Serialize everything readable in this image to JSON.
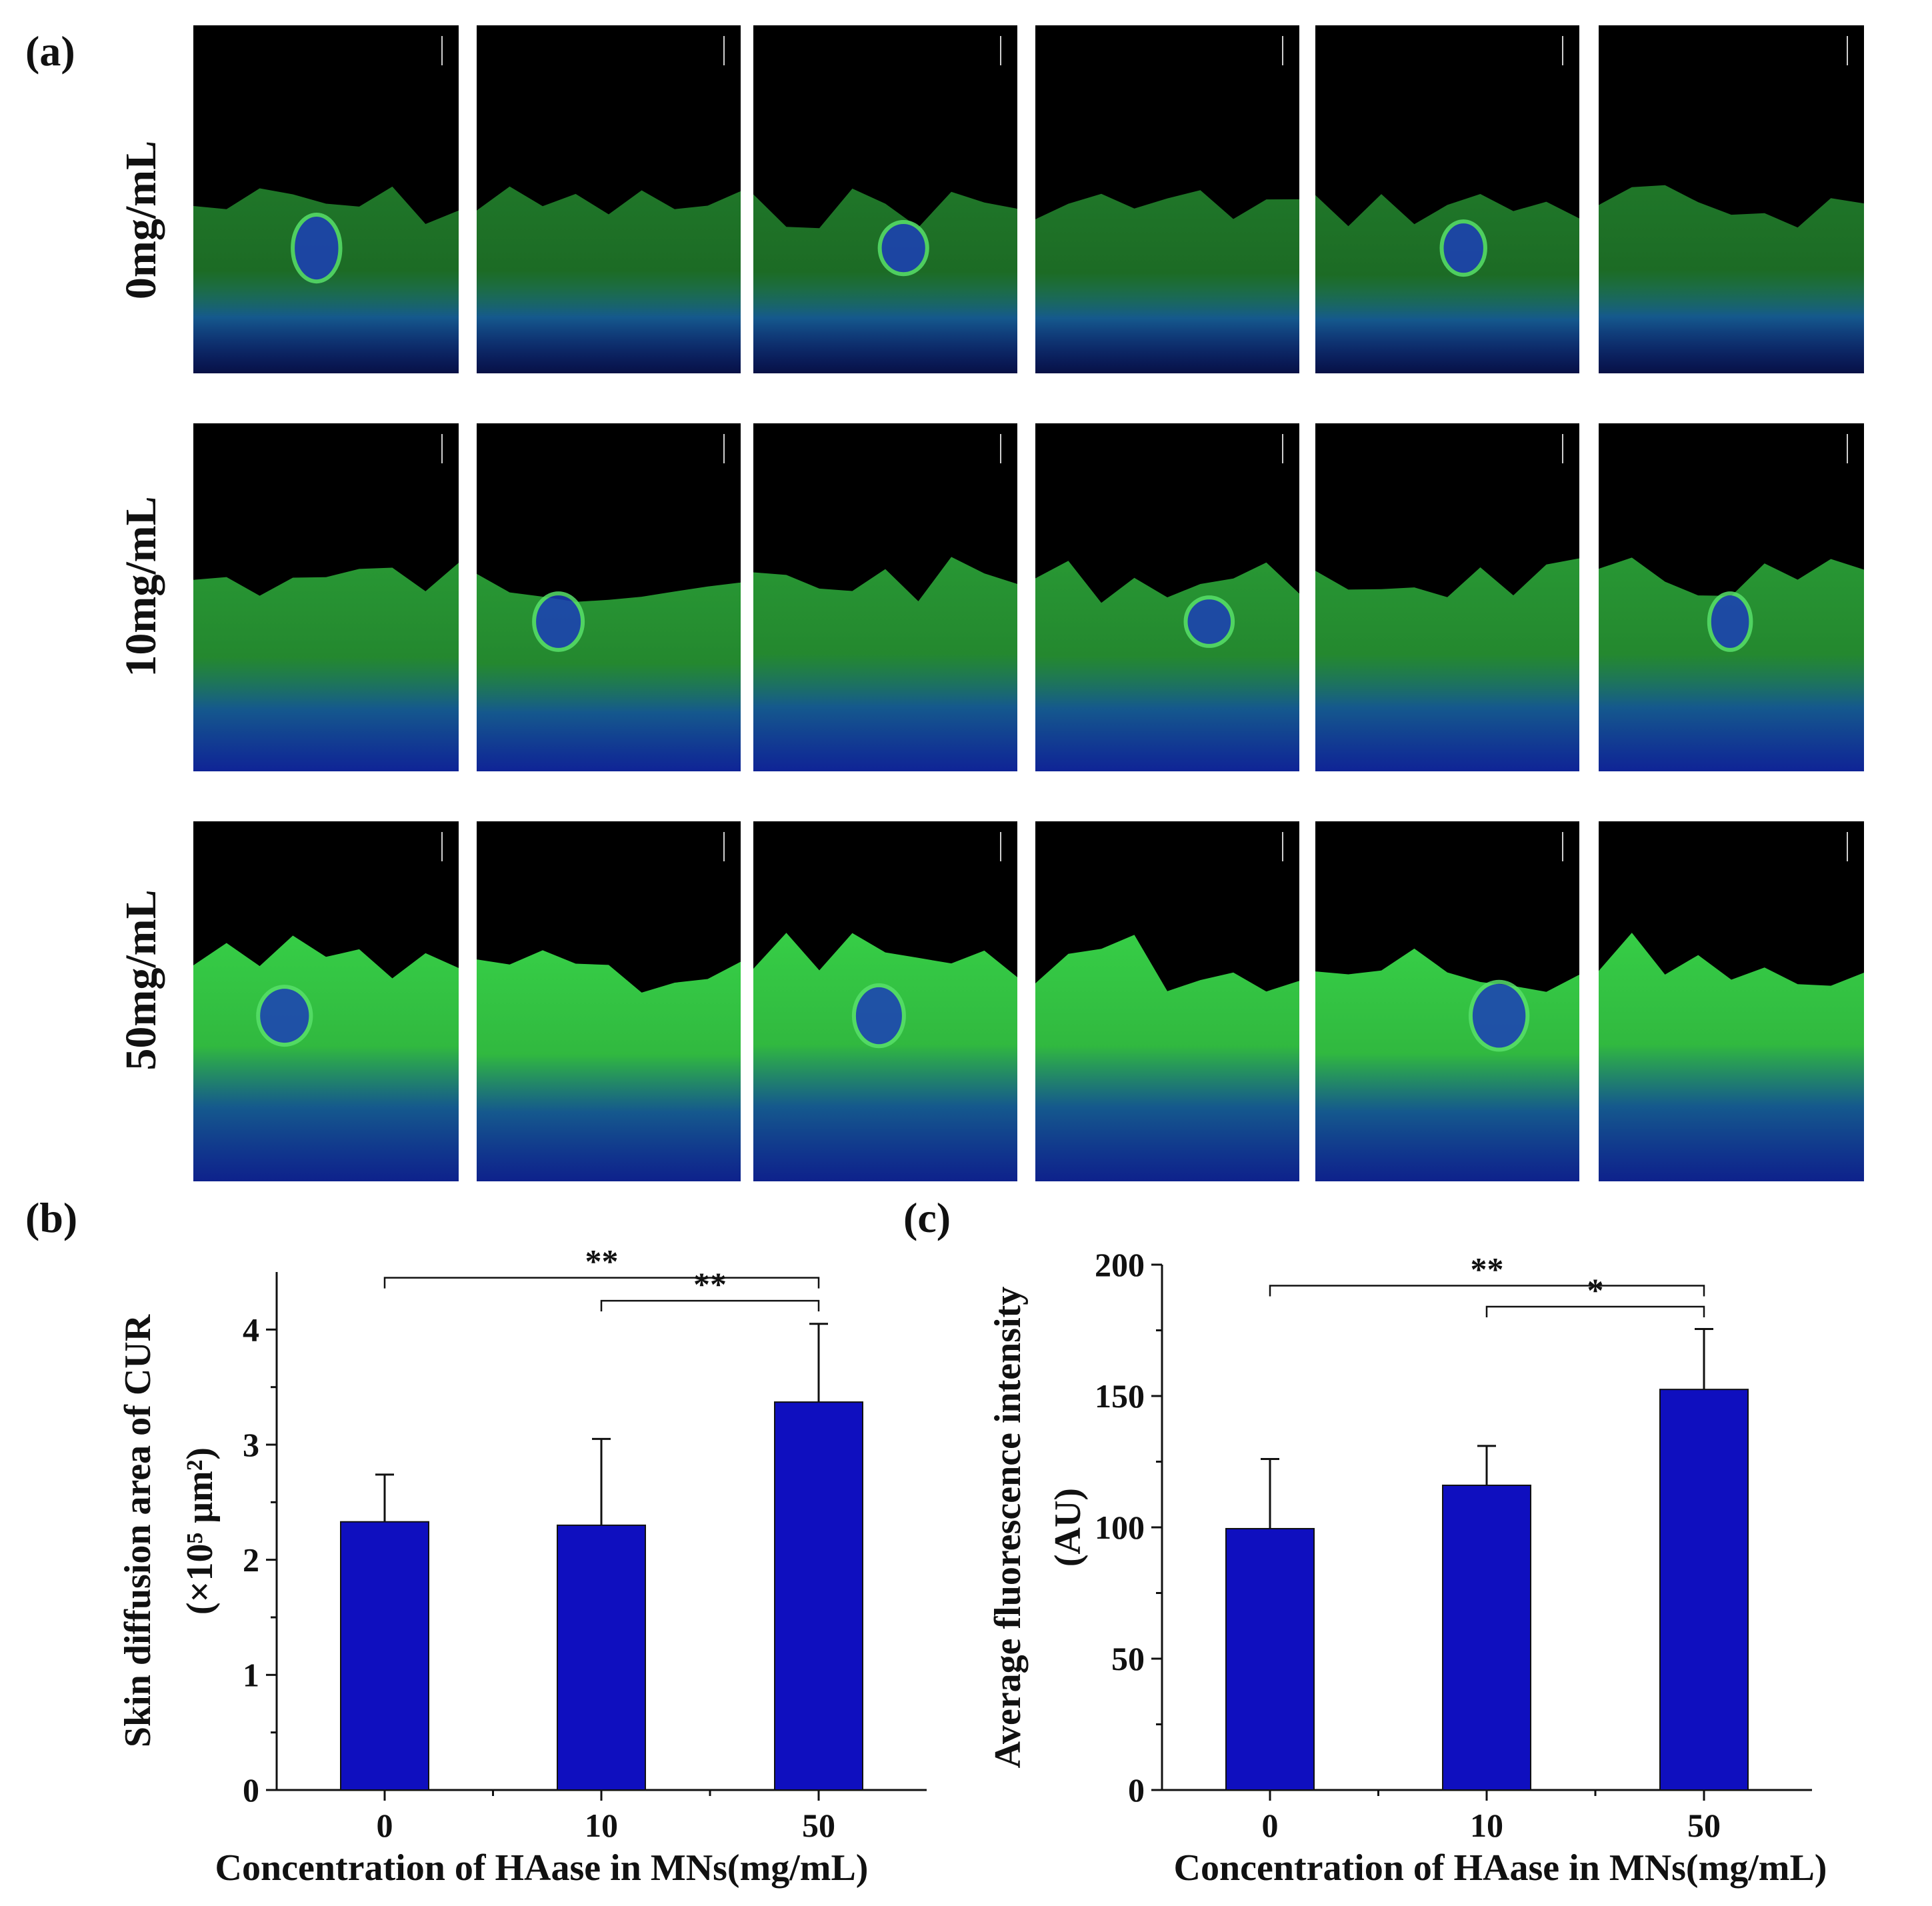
{
  "panels": {
    "a": "(a)",
    "b": "(b)",
    "c": "(c)"
  },
  "microscopy": {
    "rows": [
      {
        "label": "0mg/mL",
        "tiles": 6,
        "blue_level": 0.35,
        "green_level": 0.55
      },
      {
        "label": "10mg/mL",
        "tiles": 6,
        "blue_level": 0.75,
        "green_level": 0.7
      },
      {
        "label": "50mg/mL",
        "tiles": 6,
        "blue_level": 0.7,
        "green_level": 0.95
      }
    ],
    "colors": {
      "green": "#39d84a",
      "blue": "#1430c8",
      "background": "#000000"
    }
  },
  "chart_data": [
    {
      "type": "bar",
      "panel": "(b)",
      "categories": [
        "0",
        "10",
        "50"
      ],
      "values": [
        2.33,
        2.3,
        3.37
      ],
      "error_plus": [
        0.41,
        0.75,
        0.68
      ],
      "ylabel_line1": "Skin diffusion area of CUR",
      "ylabel_line2": "(×10⁵ μm²)",
      "xlabel": "Concentration of HAase in MNs(mg/mL)",
      "ylim": [
        0,
        4.5
      ],
      "yticks": [
        "0",
        "1",
        "2",
        "3",
        "4"
      ],
      "bar_color": "#0f0fbf",
      "significance": [
        {
          "from": 0,
          "to": 2,
          "label": "**",
          "level": 4.45
        },
        {
          "from": 1,
          "to": 2,
          "label": "**",
          "level": 4.25
        }
      ]
    },
    {
      "type": "bar",
      "panel": "(c)",
      "categories": [
        "0",
        "10",
        "50"
      ],
      "values": [
        99.5,
        116,
        152.5
      ],
      "error_plus": [
        26.5,
        15,
        23
      ],
      "ylabel_line1": "Average fluorescence intensity",
      "ylabel_line2": "(AU)",
      "xlabel": "Concentration of HAase in MNs(mg/mL)",
      "ylim": [
        0,
        200
      ],
      "yticks": [
        "0",
        "50",
        "100",
        "150",
        "200"
      ],
      "bar_color": "#0f0fbf",
      "significance": [
        {
          "from": 0,
          "to": 2,
          "label": "**",
          "level": 192
        },
        {
          "from": 1,
          "to": 2,
          "label": "*",
          "level": 184
        }
      ]
    }
  ]
}
